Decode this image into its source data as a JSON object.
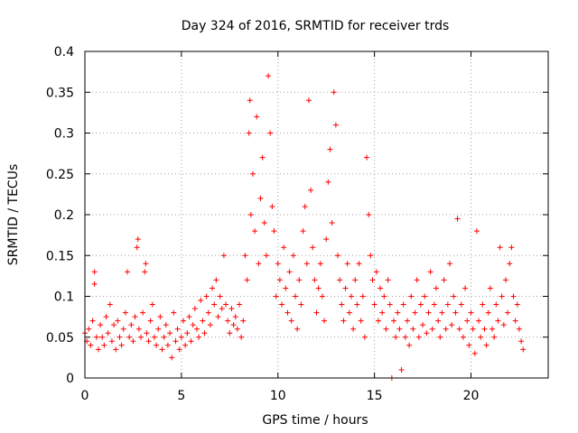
{
  "chart_data": {
    "type": "scatter",
    "title": "Day 324 of 2016, SRMTID for receiver trds",
    "xlabel": "GPS time / hours",
    "ylabel": "SRMTID / TECUs",
    "xlim": [
      0,
      24
    ],
    "ylim": [
      0,
      0.4
    ],
    "xticks": [
      0,
      5,
      10,
      15,
      20
    ],
    "xtick_labels": [
      "0",
      "5",
      "10",
      "15",
      "20"
    ],
    "yticks": [
      0,
      0.05,
      0.1,
      0.15,
      0.2,
      0.25,
      0.3,
      0.35,
      0.4
    ],
    "ytick_labels": [
      "0",
      "0.05",
      "0.1",
      "0.15",
      "0.2",
      "0.25",
      "0.3",
      "0.35",
      "0.4"
    ],
    "grid": true,
    "marker": "+",
    "series": [
      {
        "name": "SRMTID",
        "color": "#ff0000",
        "points": [
          [
            0.0,
            0.055
          ],
          [
            0.1,
            0.045
          ],
          [
            0.2,
            0.06
          ],
          [
            0.3,
            0.04
          ],
          [
            0.4,
            0.07
          ],
          [
            0.5,
            0.13
          ],
          [
            0.5,
            0.115
          ],
          [
            0.6,
            0.05
          ],
          [
            0.7,
            0.035
          ],
          [
            0.8,
            0.065
          ],
          [
            0.9,
            0.05
          ],
          [
            1.0,
            0.04
          ],
          [
            1.1,
            0.075
          ],
          [
            1.2,
            0.055
          ],
          [
            1.3,
            0.09
          ],
          [
            1.4,
            0.045
          ],
          [
            1.5,
            0.065
          ],
          [
            1.6,
            0.035
          ],
          [
            1.7,
            0.07
          ],
          [
            1.8,
            0.05
          ],
          [
            1.9,
            0.04
          ],
          [
            2.0,
            0.06
          ],
          [
            2.1,
            0.08
          ],
          [
            2.2,
            0.13
          ],
          [
            2.3,
            0.05
          ],
          [
            2.4,
            0.065
          ],
          [
            2.5,
            0.045
          ],
          [
            2.6,
            0.075
          ],
          [
            2.7,
            0.16
          ],
          [
            2.75,
            0.17
          ],
          [
            2.8,
            0.06
          ],
          [
            2.9,
            0.05
          ],
          [
            3.0,
            0.08
          ],
          [
            3.1,
            0.13
          ],
          [
            3.15,
            0.14
          ],
          [
            3.2,
            0.055
          ],
          [
            3.3,
            0.045
          ],
          [
            3.4,
            0.07
          ],
          [
            3.5,
            0.09
          ],
          [
            3.6,
            0.05
          ],
          [
            3.7,
            0.04
          ],
          [
            3.8,
            0.06
          ],
          [
            3.9,
            0.075
          ],
          [
            4.0,
            0.035
          ],
          [
            4.1,
            0.05
          ],
          [
            4.2,
            0.065
          ],
          [
            4.3,
            0.04
          ],
          [
            4.4,
            0.055
          ],
          [
            4.5,
            0.025
          ],
          [
            4.6,
            0.08
          ],
          [
            4.7,
            0.045
          ],
          [
            4.8,
            0.06
          ],
          [
            4.9,
            0.035
          ],
          [
            5.0,
            0.05
          ],
          [
            5.1,
            0.07
          ],
          [
            5.2,
            0.04
          ],
          [
            5.3,
            0.055
          ],
          [
            5.4,
            0.075
          ],
          [
            5.5,
            0.045
          ],
          [
            5.6,
            0.065
          ],
          [
            5.7,
            0.085
          ],
          [
            5.8,
            0.06
          ],
          [
            5.9,
            0.05
          ],
          [
            6.0,
            0.095
          ],
          [
            6.1,
            0.07
          ],
          [
            6.2,
            0.055
          ],
          [
            6.3,
            0.1
          ],
          [
            6.4,
            0.08
          ],
          [
            6.5,
            0.065
          ],
          [
            6.6,
            0.11
          ],
          [
            6.7,
            0.09
          ],
          [
            6.8,
            0.12
          ],
          [
            6.9,
            0.075
          ],
          [
            7.0,
            0.1
          ],
          [
            7.1,
            0.085
          ],
          [
            7.2,
            0.15
          ],
          [
            7.3,
            0.09
          ],
          [
            7.4,
            0.07
          ],
          [
            7.5,
            0.055
          ],
          [
            7.6,
            0.085
          ],
          [
            7.7,
            0.065
          ],
          [
            7.8,
            0.075
          ],
          [
            7.9,
            0.06
          ],
          [
            8.0,
            0.09
          ],
          [
            8.1,
            0.05
          ],
          [
            8.2,
            0.07
          ],
          [
            8.3,
            0.15
          ],
          [
            8.4,
            0.12
          ],
          [
            8.5,
            0.3
          ],
          [
            8.55,
            0.34
          ],
          [
            8.6,
            0.2
          ],
          [
            8.7,
            0.25
          ],
          [
            8.8,
            0.18
          ],
          [
            8.9,
            0.32
          ],
          [
            9.0,
            0.14
          ],
          [
            9.1,
            0.22
          ],
          [
            9.2,
            0.27
          ],
          [
            9.3,
            0.19
          ],
          [
            9.4,
            0.15
          ],
          [
            9.5,
            0.37
          ],
          [
            9.6,
            0.3
          ],
          [
            9.7,
            0.21
          ],
          [
            9.8,
            0.18
          ],
          [
            9.9,
            0.1
          ],
          [
            10.0,
            0.14
          ],
          [
            10.1,
            0.12
          ],
          [
            10.2,
            0.09
          ],
          [
            10.3,
            0.16
          ],
          [
            10.4,
            0.11
          ],
          [
            10.5,
            0.08
          ],
          [
            10.6,
            0.13
          ],
          [
            10.7,
            0.07
          ],
          [
            10.8,
            0.15
          ],
          [
            10.9,
            0.1
          ],
          [
            11.0,
            0.06
          ],
          [
            11.1,
            0.12
          ],
          [
            11.2,
            0.09
          ],
          [
            11.3,
            0.18
          ],
          [
            11.4,
            0.21
          ],
          [
            11.5,
            0.14
          ],
          [
            11.6,
            0.34
          ],
          [
            11.7,
            0.23
          ],
          [
            11.8,
            0.16
          ],
          [
            11.9,
            0.12
          ],
          [
            12.0,
            0.08
          ],
          [
            12.1,
            0.11
          ],
          [
            12.2,
            0.14
          ],
          [
            12.3,
            0.1
          ],
          [
            12.4,
            0.07
          ],
          [
            12.5,
            0.17
          ],
          [
            12.6,
            0.24
          ],
          [
            12.7,
            0.28
          ],
          [
            12.8,
            0.19
          ],
          [
            12.9,
            0.35
          ],
          [
            13.0,
            0.31
          ],
          [
            13.1,
            0.15
          ],
          [
            13.2,
            0.12
          ],
          [
            13.3,
            0.09
          ],
          [
            13.4,
            0.07
          ],
          [
            13.5,
            0.11
          ],
          [
            13.6,
            0.14
          ],
          [
            13.7,
            0.08
          ],
          [
            13.8,
            0.1
          ],
          [
            13.9,
            0.06
          ],
          [
            14.0,
            0.12
          ],
          [
            14.1,
            0.09
          ],
          [
            14.2,
            0.14
          ],
          [
            14.3,
            0.07
          ],
          [
            14.4,
            0.1
          ],
          [
            14.5,
            0.05
          ],
          [
            14.6,
            0.27
          ],
          [
            14.7,
            0.2
          ],
          [
            14.8,
            0.15
          ],
          [
            14.9,
            0.12
          ],
          [
            15.0,
            0.09
          ],
          [
            15.1,
            0.13
          ],
          [
            15.2,
            0.07
          ],
          [
            15.3,
            0.11
          ],
          [
            15.4,
            0.08
          ],
          [
            15.5,
            0.1
          ],
          [
            15.6,
            0.06
          ],
          [
            15.7,
            0.12
          ],
          [
            15.8,
            0.09
          ],
          [
            15.9,
            0.0
          ],
          [
            16.0,
            0.07
          ],
          [
            16.1,
            0.05
          ],
          [
            16.2,
            0.08
          ],
          [
            16.3,
            0.06
          ],
          [
            16.4,
            0.01
          ],
          [
            16.5,
            0.09
          ],
          [
            16.6,
            0.05
          ],
          [
            16.7,
            0.07
          ],
          [
            16.8,
            0.04
          ],
          [
            16.9,
            0.1
          ],
          [
            17.0,
            0.06
          ],
          [
            17.1,
            0.08
          ],
          [
            17.2,
            0.12
          ],
          [
            17.3,
            0.05
          ],
          [
            17.4,
            0.09
          ],
          [
            17.5,
            0.065
          ],
          [
            17.6,
            0.1
          ],
          [
            17.7,
            0.055
          ],
          [
            17.8,
            0.08
          ],
          [
            17.9,
            0.13
          ],
          [
            18.0,
            0.06
          ],
          [
            18.1,
            0.09
          ],
          [
            18.2,
            0.11
          ],
          [
            18.3,
            0.07
          ],
          [
            18.4,
            0.05
          ],
          [
            18.5,
            0.08
          ],
          [
            18.6,
            0.12
          ],
          [
            18.7,
            0.06
          ],
          [
            18.8,
            0.09
          ],
          [
            18.9,
            0.14
          ],
          [
            19.0,
            0.065
          ],
          [
            19.1,
            0.1
          ],
          [
            19.2,
            0.08
          ],
          [
            19.3,
            0.195
          ],
          [
            19.4,
            0.06
          ],
          [
            19.5,
            0.09
          ],
          [
            19.6,
            0.05
          ],
          [
            19.7,
            0.11
          ],
          [
            19.8,
            0.07
          ],
          [
            19.9,
            0.04
          ],
          [
            20.0,
            0.08
          ],
          [
            20.1,
            0.06
          ],
          [
            20.2,
            0.03
          ],
          [
            20.3,
            0.18
          ],
          [
            20.4,
            0.07
          ],
          [
            20.5,
            0.05
          ],
          [
            20.6,
            0.09
          ],
          [
            20.7,
            0.06
          ],
          [
            20.8,
            0.04
          ],
          [
            20.9,
            0.08
          ],
          [
            21.0,
            0.11
          ],
          [
            21.1,
            0.06
          ],
          [
            21.2,
            0.05
          ],
          [
            21.3,
            0.09
          ],
          [
            21.4,
            0.07
          ],
          [
            21.5,
            0.16
          ],
          [
            21.6,
            0.1
          ],
          [
            21.7,
            0.065
          ],
          [
            21.8,
            0.12
          ],
          [
            21.9,
            0.08
          ],
          [
            22.0,
            0.14
          ],
          [
            22.1,
            0.16
          ],
          [
            22.2,
            0.1
          ],
          [
            22.3,
            0.07
          ],
          [
            22.4,
            0.09
          ],
          [
            22.5,
            0.06
          ],
          [
            22.6,
            0.045
          ],
          [
            22.7,
            0.035
          ]
        ]
      }
    ]
  }
}
